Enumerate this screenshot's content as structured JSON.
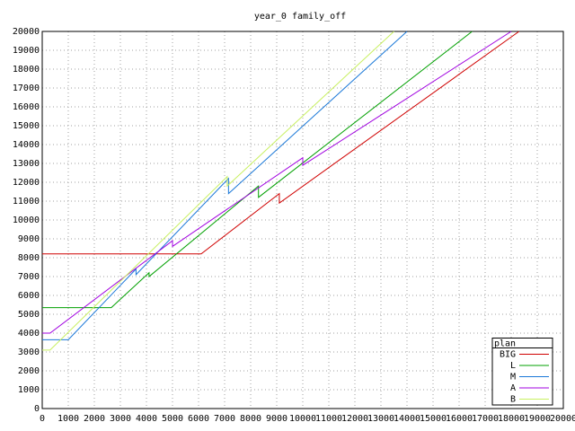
{
  "chart_data": {
    "type": "line",
    "title": "year_0 family_off",
    "xlim": [
      0,
      20000
    ],
    "ylim": [
      0,
      20000
    ],
    "xticks": [
      0,
      1000,
      2000,
      3000,
      4000,
      5000,
      6000,
      7000,
      8000,
      9000,
      10000,
      11000,
      12000,
      13000,
      14000,
      15000,
      16000,
      17000,
      18000,
      19000,
      20000
    ],
    "yticks": [
      0,
      1000,
      2000,
      3000,
      4000,
      5000,
      6000,
      7000,
      8000,
      9000,
      10000,
      11000,
      12000,
      13000,
      14000,
      15000,
      16000,
      17000,
      18000,
      19000,
      20000
    ],
    "grid": true,
    "legend_title": "plan",
    "legend": "bottom-right",
    "series": [
      {
        "name": "BIG",
        "color": "#d00000",
        "x": [
          0,
          6100,
          9100,
          9100,
          18300
        ],
        "values": [
          8200,
          8200,
          11400,
          10900,
          20000
        ]
      },
      {
        "name": "L",
        "color": "#00a000",
        "x": [
          0,
          2650,
          4100,
          4100,
          8300,
          8300,
          16500
        ],
        "values": [
          5350,
          5350,
          7200,
          7000,
          11800,
          11200,
          20000
        ]
      },
      {
        "name": "M",
        "color": "#1a78d8",
        "x": [
          0,
          1000,
          3600,
          3600,
          7150,
          7150,
          14000
        ],
        "values": [
          3650,
          3650,
          7400,
          7100,
          12200,
          11400,
          20000
        ]
      },
      {
        "name": "A",
        "color": "#a000e0",
        "x": [
          0,
          300,
          5000,
          5000,
          10000,
          10000,
          18000
        ],
        "values": [
          4000,
          4000,
          8900,
          8600,
          13300,
          12900,
          20000
        ]
      },
      {
        "name": "B",
        "color": "#c8f060",
        "x": [
          0,
          300,
          7100,
          7100,
          13500
        ],
        "values": [
          3100,
          3100,
          12300,
          11800,
          20000
        ]
      }
    ]
  }
}
